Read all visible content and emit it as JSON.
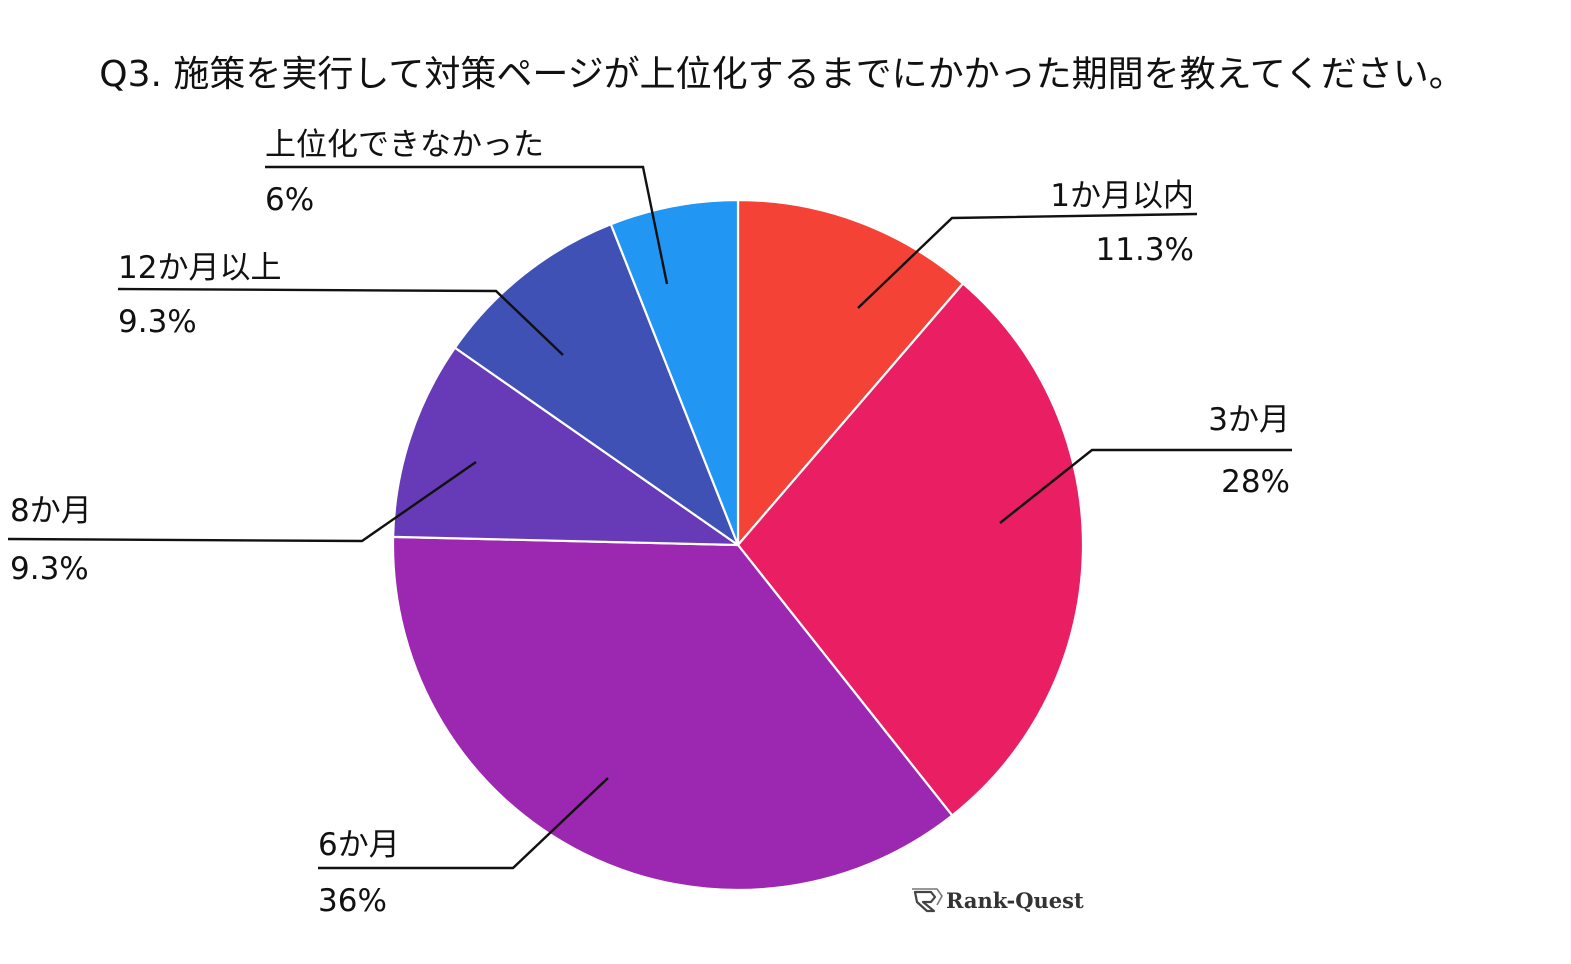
{
  "chart_data": {
    "type": "pie",
    "title": "Q3. 施策を実行して対策ページが上位化するまでにかかった期間を教えてください。",
    "start_angle_deg": 0,
    "direction": "clockwise",
    "slices": [
      {
        "label": "1か月以内",
        "value": 11.3,
        "value_label": "11.3%",
        "color": "#f44336"
      },
      {
        "label": "3か月",
        "value": 28,
        "value_label": "28%",
        "color": "#e91e63"
      },
      {
        "label": "6か月",
        "value": 36,
        "value_label": "36%",
        "color": "#9c27b0"
      },
      {
        "label": "8か月",
        "value": 9.3,
        "value_label": "9.3%",
        "color": "#673ab7"
      },
      {
        "label": "12か月以上",
        "value": 9.3,
        "value_label": "9.3%",
        "color": "#3f51b5"
      },
      {
        "label": "上位化できなかった",
        "value": 6,
        "value_label": "6%",
        "color": "#2196f3"
      }
    ],
    "watermark": "Rank-Quest"
  }
}
